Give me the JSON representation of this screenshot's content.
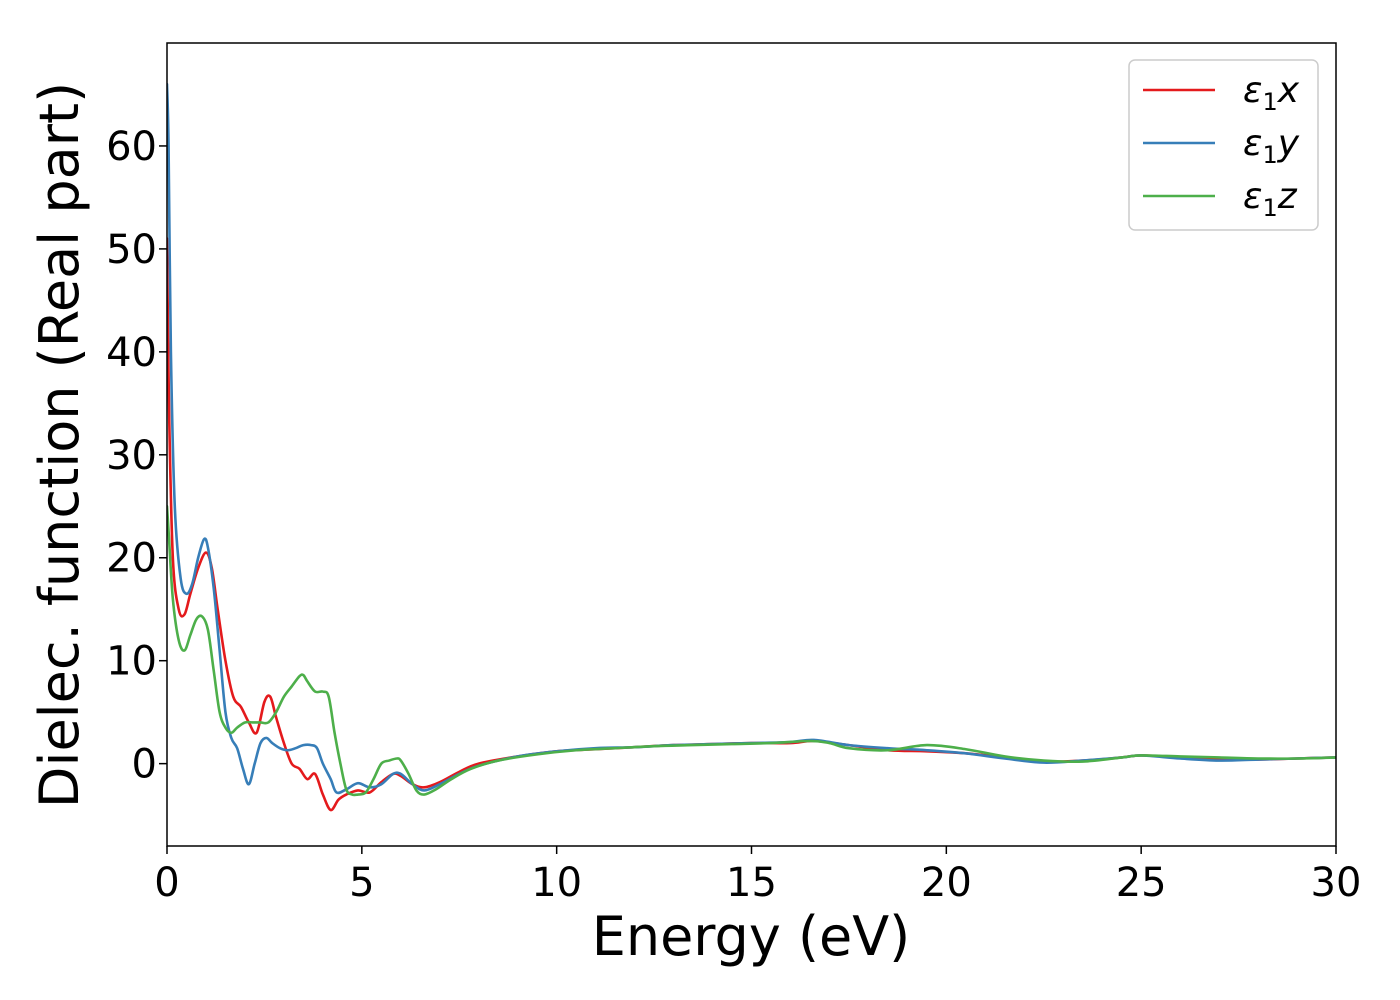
{
  "chart_data": {
    "type": "line",
    "title": "",
    "xlabel": "Energy (eV)",
    "ylabel": "Dielec. function (Real part)",
    "xlim": [
      0,
      30
    ],
    "ylim": [
      -8,
      70
    ],
    "xticks": [
      0,
      5,
      10,
      15,
      20,
      25,
      30
    ],
    "yticks": [
      0,
      10,
      20,
      30,
      40,
      50,
      60
    ],
    "grid": false,
    "legend_position": "top-right",
    "series": [
      {
        "name": "ε1x",
        "legend_base": "ε",
        "legend_sub": "1",
        "legend_suffix": "x",
        "color": "#e41a1c",
        "x": [
          0.0,
          0.05,
          0.15,
          0.3,
          0.45,
          0.6,
          0.8,
          1.0,
          1.15,
          1.3,
          1.5,
          1.7,
          1.9,
          2.1,
          2.3,
          2.5,
          2.65,
          2.8,
          3.0,
          3.2,
          3.4,
          3.6,
          3.8,
          4.0,
          4.2,
          4.4,
          4.6,
          4.9,
          5.2,
          5.5,
          5.8,
          6.0,
          6.3,
          6.6,
          7.0,
          7.5,
          8.0,
          9.0,
          10.0,
          11.0,
          12.0,
          13.0,
          14.0,
          15.0,
          16.0,
          16.6,
          17.5,
          18.5,
          19.5,
          20.5,
          21.5,
          22.5,
          23.5,
          24.5,
          25.0,
          26.0,
          27.0,
          28.0,
          29.0,
          30.0
        ],
        "y": [
          51,
          35,
          20,
          15,
          14.5,
          16.5,
          19,
          20.5,
          19,
          15,
          10,
          6.5,
          5.5,
          4,
          3,
          6,
          6.5,
          4.5,
          2,
          0,
          -0.5,
          -1.5,
          -1,
          -3,
          -4.5,
          -3.5,
          -3,
          -2.6,
          -2.8,
          -1.8,
          -1,
          -1.2,
          -2,
          -2.3,
          -1.8,
          -0.8,
          0,
          0.7,
          1.2,
          1.4,
          1.6,
          1.8,
          1.9,
          2.0,
          2.0,
          2.2,
          1.8,
          1.3,
          1.2,
          1.0,
          0.6,
          0.2,
          0.3,
          0.6,
          0.8,
          0.6,
          0.4,
          0.4,
          0.5,
          0.6
        ]
      },
      {
        "name": "ε1y",
        "legend_base": "ε",
        "legend_sub": "1",
        "legend_suffix": "y",
        "color": "#377eb8",
        "x": [
          0.0,
          0.04,
          0.1,
          0.2,
          0.35,
          0.5,
          0.65,
          0.8,
          0.95,
          1.05,
          1.2,
          1.35,
          1.5,
          1.65,
          1.8,
          1.95,
          2.1,
          2.25,
          2.4,
          2.55,
          2.7,
          2.9,
          3.1,
          3.3,
          3.5,
          3.7,
          3.85,
          4.0,
          4.2,
          4.35,
          4.6,
          4.9,
          5.2,
          5.5,
          5.8,
          6.0,
          6.3,
          6.6,
          7.0,
          7.5,
          8.0,
          9.0,
          10.0,
          11.0,
          12.0,
          13.0,
          14.0,
          15.0,
          16.0,
          16.6,
          17.5,
          18.5,
          19.5,
          20.5,
          21.5,
          22.5,
          23.5,
          24.5,
          25.0,
          26.0,
          27.0,
          28.0,
          29.0,
          30.0
        ],
        "y": [
          66,
          60,
          40,
          25,
          18,
          16.5,
          17.5,
          20,
          21.8,
          21,
          17,
          11,
          5,
          2.5,
          1.5,
          -0.5,
          -2,
          0,
          2,
          2.5,
          2,
          1.5,
          1.3,
          1.5,
          1.8,
          1.8,
          1.5,
          0,
          -1.5,
          -2.8,
          -2.5,
          -1.9,
          -2.3,
          -2.0,
          -1.0,
          -1.0,
          -2.0,
          -2.6,
          -2.0,
          -1.0,
          -0.2,
          0.7,
          1.2,
          1.5,
          1.6,
          1.8,
          1.9,
          2.0,
          2.1,
          2.3,
          1.8,
          1.5,
          1.3,
          1.0,
          0.5,
          0.1,
          0.3,
          0.6,
          0.8,
          0.5,
          0.3,
          0.4,
          0.5,
          0.6
        ]
      },
      {
        "name": "ε1z",
        "legend_base": "ε",
        "legend_sub": "1",
        "legend_suffix": "z",
        "color": "#4daf4a",
        "x": [
          0.0,
          0.05,
          0.15,
          0.3,
          0.45,
          0.6,
          0.75,
          0.9,
          1.05,
          1.2,
          1.35,
          1.5,
          1.65,
          1.8,
          2.0,
          2.2,
          2.4,
          2.6,
          2.8,
          3.0,
          3.2,
          3.4,
          3.5,
          3.6,
          3.8,
          4.0,
          4.15,
          4.3,
          4.45,
          4.6,
          4.75,
          4.9,
          5.1,
          5.3,
          5.5,
          5.7,
          5.9,
          6.0,
          6.2,
          6.4,
          6.6,
          6.9,
          7.3,
          7.8,
          8.5,
          9.5,
          10.5,
          11.5,
          12.5,
          13.5,
          14.5,
          15.5,
          16.5,
          17.0,
          17.5,
          18.5,
          19.5,
          20.5,
          21.5,
          22.5,
          23.5,
          24.5,
          25.0,
          26.0,
          27.0,
          28.0,
          29.0,
          30.0
        ],
        "y": [
          25,
          22,
          16,
          12,
          11,
          12.5,
          14,
          14.3,
          13,
          9,
          5,
          3.5,
          3,
          3.5,
          4,
          4,
          4,
          4,
          5,
          6.5,
          7.5,
          8.5,
          8.6,
          8,
          7,
          7,
          6.5,
          3,
          0,
          -2.5,
          -3,
          -3.0,
          -2.8,
          -1.5,
          0,
          0.3,
          0.5,
          0.3,
          -1.0,
          -2.6,
          -3.0,
          -2.5,
          -1.5,
          -0.5,
          0.3,
          0.9,
          1.3,
          1.5,
          1.7,
          1.8,
          1.9,
          2.0,
          2.2,
          2.0,
          1.5,
          1.3,
          1.8,
          1.4,
          0.7,
          0.3,
          0.2,
          0.6,
          0.8,
          0.7,
          0.6,
          0.5,
          0.5,
          0.6
        ]
      }
    ]
  }
}
